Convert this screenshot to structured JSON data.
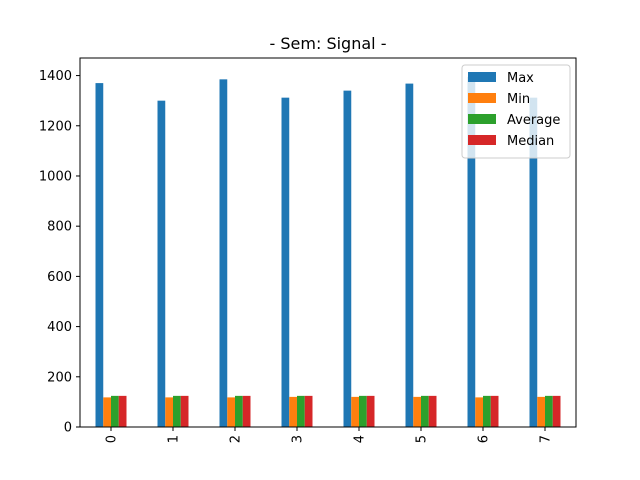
{
  "chart_data": {
    "type": "bar",
    "title": "- Sem: Signal -",
    "xlabel": "",
    "ylabel": "",
    "categories": [
      "0",
      "1",
      "2",
      "3",
      "4",
      "5",
      "6",
      "7"
    ],
    "series": [
      {
        "name": "Max",
        "color": "#1f77b4",
        "values": [
          1370,
          1300,
          1385,
          1312,
          1340,
          1368,
          1395,
          1312
        ]
      },
      {
        "name": "Min",
        "color": "#ff7f0e",
        "values": [
          118,
          118,
          118,
          120,
          120,
          120,
          118,
          120
        ]
      },
      {
        "name": "Average",
        "color": "#2ca02c",
        "values": [
          124,
          124,
          124,
          124,
          124,
          124,
          124,
          124
        ]
      },
      {
        "name": "Median",
        "color": "#d62728",
        "values": [
          124,
          124,
          124,
          124,
          124,
          124,
          124,
          124
        ]
      }
    ],
    "ylim": [
      0,
      1470
    ],
    "yticks": [
      0,
      200,
      400,
      600,
      800,
      1000,
      1200,
      1400
    ],
    "grid": false,
    "legend_position": "top-right",
    "xtick_rotation": "vertical"
  }
}
